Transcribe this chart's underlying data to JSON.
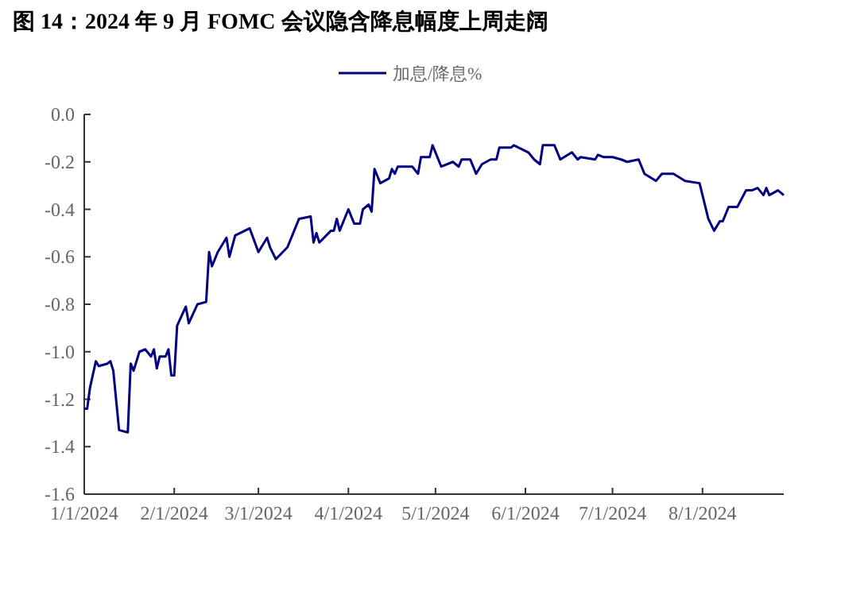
{
  "chart_data": {
    "type": "line",
    "title": "图 14：2024 年 9 月 FOMC 会议隐含降息幅度上周走阔",
    "x": [
      "2024-01-01",
      "2024-01-02",
      "2024-01-03",
      "2024-01-05",
      "2024-01-06",
      "2024-01-09",
      "2024-01-10",
      "2024-01-11",
      "2024-01-13",
      "2024-01-16",
      "2024-01-17",
      "2024-01-18",
      "2024-01-20",
      "2024-01-22",
      "2024-01-24",
      "2024-01-25",
      "2024-01-26",
      "2024-01-27",
      "2024-01-29",
      "2024-01-30",
      "2024-01-31",
      "2024-02-01",
      "2024-02-02",
      "2024-02-05",
      "2024-02-06",
      "2024-02-09",
      "2024-02-12",
      "2024-02-13",
      "2024-02-14",
      "2024-02-16",
      "2024-02-19",
      "2024-02-20",
      "2024-02-22",
      "2024-02-27",
      "2024-03-01",
      "2024-03-04",
      "2024-03-05",
      "2024-03-07",
      "2024-03-11",
      "2024-03-13",
      "2024-03-15",
      "2024-03-19",
      "2024-03-20",
      "2024-03-21",
      "2024-03-22",
      "2024-03-26",
      "2024-03-27",
      "2024-03-28",
      "2024-03-29",
      "2024-04-01",
      "2024-04-03",
      "2024-04-05",
      "2024-04-06",
      "2024-04-08",
      "2024-04-09",
      "2024-04-10",
      "2024-04-12",
      "2024-04-15",
      "2024-04-16",
      "2024-04-17",
      "2024-04-18",
      "2024-04-22",
      "2024-04-23",
      "2024-04-25",
      "2024-04-26",
      "2024-04-29",
      "2024-04-30",
      "2024-05-03",
      "2024-05-07",
      "2024-05-09",
      "2024-05-10",
      "2024-05-13",
      "2024-05-15",
      "2024-05-17",
      "2024-05-20",
      "2024-05-22",
      "2024-05-23",
      "2024-05-27",
      "2024-05-28",
      "2024-06-02",
      "2024-06-04",
      "2024-06-06",
      "2024-06-07",
      "2024-06-11",
      "2024-06-13",
      "2024-06-17",
      "2024-06-19",
      "2024-06-20",
      "2024-06-25",
      "2024-06-26",
      "2024-06-28",
      "2024-07-01",
      "2024-07-04",
      "2024-07-06",
      "2024-07-10",
      "2024-07-12",
      "2024-07-16",
      "2024-07-18",
      "2024-07-22",
      "2024-07-26",
      "2024-07-31",
      "2024-08-03",
      "2024-08-05",
      "2024-08-07",
      "2024-08-08",
      "2024-08-10",
      "2024-08-13",
      "2024-08-16",
      "2024-08-18",
      "2024-08-20",
      "2024-08-22",
      "2024-08-23",
      "2024-08-24",
      "2024-08-27",
      "2024-08-29"
    ],
    "series": [
      {
        "name": "加息/降息%",
        "color": "#000080",
        "values": [
          -1.24,
          -1.24,
          -1.15,
          -1.04,
          -1.06,
          -1.05,
          -1.04,
          -1.08,
          -1.33,
          -1.34,
          -1.05,
          -1.08,
          -1.0,
          -0.99,
          -1.02,
          -0.99,
          -1.07,
          -1.02,
          -1.02,
          -0.99,
          -1.1,
          -1.1,
          -0.89,
          -0.81,
          -0.88,
          -0.8,
          -0.79,
          -0.58,
          -0.64,
          -0.58,
          -0.52,
          -0.6,
          -0.51,
          -0.48,
          -0.58,
          -0.52,
          -0.56,
          -0.61,
          -0.56,
          -0.5,
          -0.44,
          -0.43,
          -0.54,
          -0.5,
          -0.54,
          -0.49,
          -0.49,
          -0.44,
          -0.49,
          -0.4,
          -0.46,
          -0.46,
          -0.4,
          -0.38,
          -0.41,
          -0.23,
          -0.29,
          -0.27,
          -0.23,
          -0.25,
          -0.22,
          -0.22,
          -0.22,
          -0.25,
          -0.18,
          -0.18,
          -0.13,
          -0.22,
          -0.2,
          -0.22,
          -0.19,
          -0.19,
          -0.25,
          -0.21,
          -0.19,
          -0.19,
          -0.14,
          -0.14,
          -0.13,
          -0.16,
          -0.19,
          -0.21,
          -0.13,
          -0.13,
          -0.19,
          -0.16,
          -0.19,
          -0.18,
          -0.19,
          -0.17,
          -0.18,
          -0.18,
          -0.19,
          -0.2,
          -0.19,
          -0.25,
          -0.28,
          -0.25,
          -0.25,
          -0.28,
          -0.29,
          -0.44,
          -0.49,
          -0.45,
          -0.45,
          -0.39,
          -0.39,
          -0.32,
          -0.32,
          -0.31,
          -0.34,
          -0.31,
          -0.34,
          -0.32,
          -0.34
        ]
      }
    ],
    "xlim": [
      "2024-01-01",
      "2024-08-29"
    ],
    "xticks": [
      {
        "value": "2024-01-01",
        "label": "1/1/2024"
      },
      {
        "value": "2024-02-01",
        "label": "2/1/2024"
      },
      {
        "value": "2024-03-01",
        "label": "3/1/2024"
      },
      {
        "value": "2024-04-01",
        "label": "4/1/2024"
      },
      {
        "value": "2024-05-01",
        "label": "5/1/2024"
      },
      {
        "value": "2024-06-01",
        "label": "6/1/2024"
      },
      {
        "value": "2024-07-01",
        "label": "7/1/2024"
      },
      {
        "value": "2024-08-01",
        "label": "8/1/2024"
      }
    ],
    "ylim": [
      -1.6,
      0
    ],
    "yticks": [
      {
        "value": 0,
        "label": "0.0"
      },
      {
        "value": -0.2,
        "label": "-0.2"
      },
      {
        "value": -0.4,
        "label": "-0.4"
      },
      {
        "value": -0.6,
        "label": "-0.6"
      },
      {
        "value": -0.8,
        "label": "-0.8"
      },
      {
        "value": -1.0,
        "label": "-1.0"
      },
      {
        "value": -1.2,
        "label": "-1.2"
      },
      {
        "value": -1.4,
        "label": "-1.4"
      },
      {
        "value": -1.6,
        "label": "-1.6"
      }
    ],
    "legend": "top"
  }
}
